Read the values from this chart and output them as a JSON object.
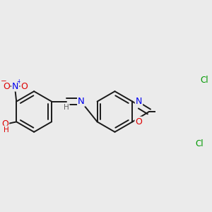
{
  "bg_color": "#ebebeb",
  "bond_color": "#1a1a1a",
  "bond_width": 1.4,
  "dbo": 0.055,
  "atom_colors": {
    "N": "#0000ee",
    "O": "#dd0000",
    "Cl": "#009900",
    "H": "#606060",
    "C": "#1a1a1a"
  },
  "font_size": 7.5,
  "fig_bg": "#ebebeb"
}
